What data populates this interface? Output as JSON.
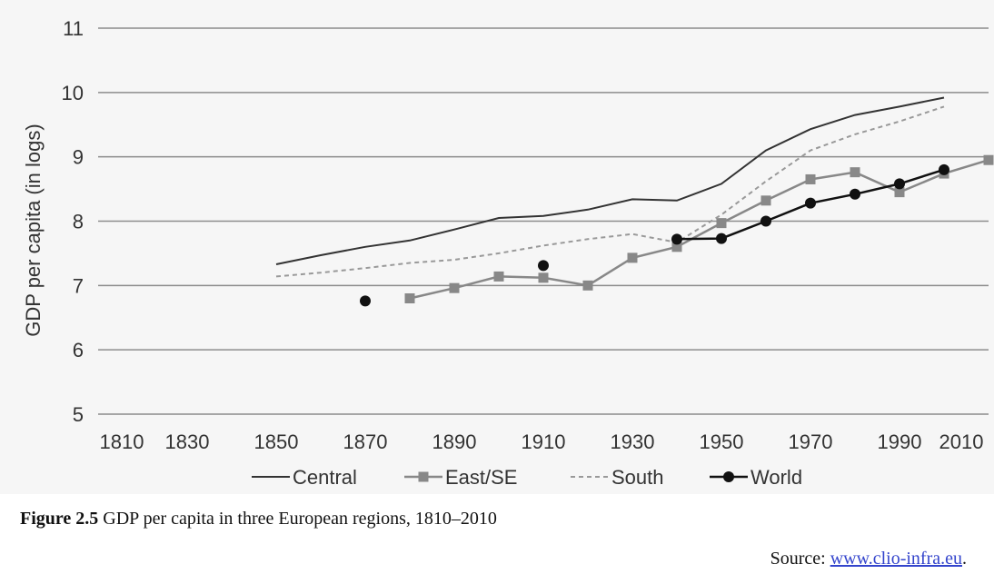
{
  "chart_data": {
    "type": "line",
    "title": "",
    "xlabel": "",
    "ylabel": "GDP per capita (in logs)",
    "xlim": [
      1810,
      2010
    ],
    "ylim": [
      5,
      11
    ],
    "x_ticks": [
      "1810",
      "1830",
      "1850",
      "1870",
      "1890",
      "1910",
      "1930",
      "1950",
      "1970",
      "1990",
      "2010"
    ],
    "y_ticks": [
      "5",
      "6",
      "7",
      "8",
      "9",
      "10",
      "11"
    ],
    "grid": "horizontal",
    "legend_position": "bottom",
    "series": [
      {
        "name": "Central",
        "style": "solid",
        "marker": "none",
        "color": "#333333",
        "points": [
          [
            1850,
            7.33
          ],
          [
            1860,
            7.47
          ],
          [
            1870,
            7.6
          ],
          [
            1880,
            7.7
          ],
          [
            1890,
            7.87
          ],
          [
            1900,
            8.05
          ],
          [
            1910,
            8.08
          ],
          [
            1920,
            8.18
          ],
          [
            1930,
            8.34
          ],
          [
            1940,
            8.32
          ],
          [
            1950,
            8.58
          ],
          [
            1960,
            9.1
          ],
          [
            1970,
            9.43
          ],
          [
            1980,
            9.65
          ],
          [
            1990,
            9.78
          ],
          [
            2000,
            9.92
          ]
        ]
      },
      {
        "name": "East/SE",
        "style": "solid",
        "marker": "square",
        "color": "#888888",
        "points": [
          [
            1880,
            6.8
          ],
          [
            1890,
            6.96
          ],
          [
            1900,
            7.14
          ],
          [
            1910,
            7.12
          ],
          [
            1920,
            7.0
          ],
          [
            1930,
            7.43
          ],
          [
            1940,
            7.6
          ],
          [
            1950,
            7.97
          ],
          [
            1960,
            8.32
          ],
          [
            1970,
            8.65
          ],
          [
            1980,
            8.76
          ],
          [
            1990,
            8.45
          ],
          [
            2000,
            8.74
          ],
          [
            2010,
            8.95
          ]
        ]
      },
      {
        "name": "South",
        "style": "dashed",
        "marker": "none",
        "color": "#999999",
        "points": [
          [
            1850,
            7.14
          ],
          [
            1860,
            7.2
          ],
          [
            1870,
            7.27
          ],
          [
            1880,
            7.35
          ],
          [
            1890,
            7.4
          ],
          [
            1900,
            7.5
          ],
          [
            1910,
            7.62
          ],
          [
            1920,
            7.72
          ],
          [
            1930,
            7.8
          ],
          [
            1940,
            7.67
          ],
          [
            1950,
            8.1
          ],
          [
            1960,
            8.62
          ],
          [
            1970,
            9.1
          ],
          [
            1980,
            9.35
          ],
          [
            1990,
            9.55
          ],
          [
            2000,
            9.78
          ]
        ]
      },
      {
        "name": "World",
        "style": "solid",
        "marker": "circle",
        "color": "#111111",
        "points": [
          [
            1870,
            6.76
          ],
          [
            1910,
            7.31
          ],
          [
            1940,
            7.72
          ],
          [
            1950,
            7.73
          ],
          [
            1960,
            8.0
          ],
          [
            1970,
            8.28
          ],
          [
            1980,
            8.42
          ],
          [
            1990,
            8.58
          ],
          [
            2000,
            8.8
          ]
        ],
        "segments": [
          [
            0
          ],
          [
            1
          ],
          [
            2,
            3,
            4,
            5,
            6,
            7,
            8
          ]
        ]
      }
    ]
  },
  "caption": {
    "label": "Figure 2.5",
    "text": " GDP per capita in three European regions, 1810–2010"
  },
  "source": {
    "label": "Source: ",
    "link": "www.clio-infra.eu",
    "suffix": "."
  }
}
